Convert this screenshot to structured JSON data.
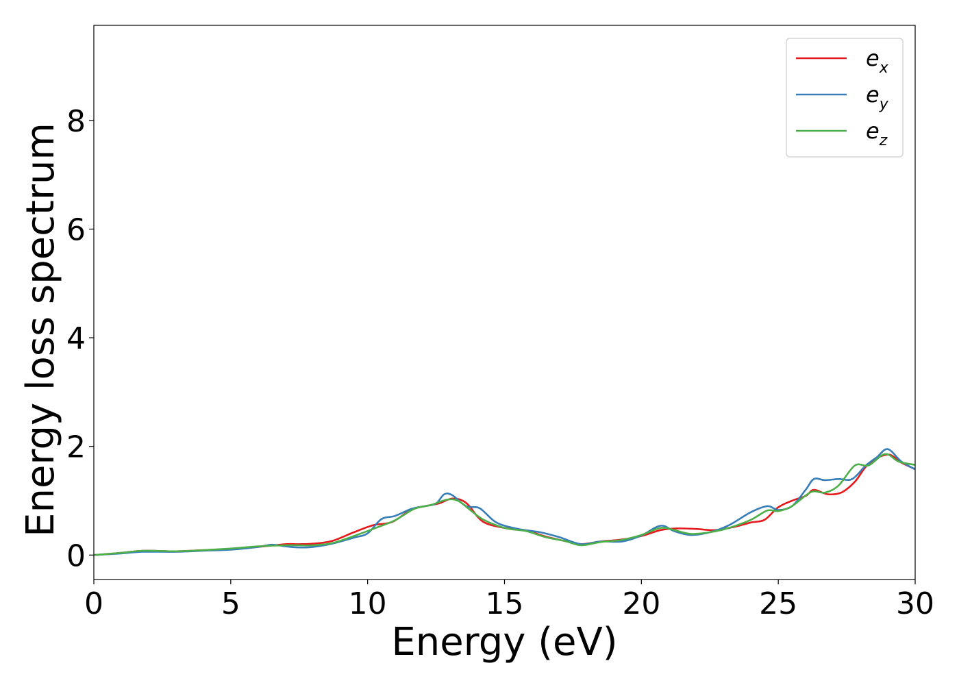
{
  "chart_data": {
    "type": "line",
    "xlabel": "Energy (eV)",
    "ylabel": "Energy loss spectrum",
    "xlim": [
      0,
      30
    ],
    "ylim": [
      -0.45,
      9.75
    ],
    "xticks": [
      0,
      5,
      10,
      15,
      20,
      25,
      30
    ],
    "yticks": [
      0,
      2,
      4,
      6,
      8
    ],
    "xtick_labels": [
      "0",
      "5",
      "10",
      "15",
      "20",
      "25",
      "30"
    ],
    "ytick_labels": [
      "0",
      "2",
      "4",
      "6",
      "8"
    ],
    "grid": false,
    "legend_position": "top-right",
    "series": [
      {
        "name": "e",
        "subscript": "x",
        "color": "#e41a1c",
        "x": [
          0,
          1,
          1.8,
          3,
          4,
          5,
          6,
          7,
          7.5,
          8,
          8.7,
          9.5,
          10.2,
          10.9,
          11.6,
          12.1,
          12.6,
          13.1,
          13.6,
          14.2,
          15,
          15.8,
          16.5,
          17.2,
          17.8,
          18.5,
          19.2,
          20,
          20.7,
          21.3,
          22,
          22.7,
          23.4,
          24,
          24.5,
          25,
          25.5,
          26,
          26.3,
          26.8,
          27.3,
          27.8,
          28.3,
          29,
          29.5,
          30
        ],
        "y": [
          0,
          0.04,
          0.08,
          0.07,
          0.09,
          0.11,
          0.15,
          0.2,
          0.2,
          0.21,
          0.26,
          0.42,
          0.55,
          0.61,
          0.84,
          0.9,
          0.95,
          1.04,
          0.96,
          0.62,
          0.5,
          0.45,
          0.34,
          0.26,
          0.2,
          0.25,
          0.28,
          0.35,
          0.46,
          0.49,
          0.48,
          0.46,
          0.52,
          0.6,
          0.65,
          0.88,
          1.0,
          1.09,
          1.2,
          1.12,
          1.15,
          1.35,
          1.68,
          1.85,
          1.7,
          1.58
        ]
      },
      {
        "name": "e",
        "subscript": "y",
        "color": "#377eb8",
        "x": [
          0,
          1,
          1.8,
          3,
          4,
          5,
          6,
          6.5,
          7,
          7.5,
          8,
          8.7,
          9.5,
          10,
          10.5,
          11,
          11.6,
          12.1,
          12.5,
          12.8,
          13.1,
          13.6,
          14.1,
          14.7,
          15.5,
          16.3,
          17,
          17.8,
          18.5,
          19.3,
          20,
          20.7,
          21.2,
          21.8,
          22.5,
          23.2,
          24,
          24.6,
          25,
          25.5,
          26,
          26.3,
          26.7,
          27.2,
          27.7,
          28.2,
          28.6,
          29,
          29.5,
          30
        ],
        "y": [
          0,
          0.03,
          0.06,
          0.06,
          0.08,
          0.1,
          0.15,
          0.19,
          0.16,
          0.14,
          0.15,
          0.21,
          0.32,
          0.4,
          0.66,
          0.72,
          0.85,
          0.9,
          0.95,
          1.12,
          1.1,
          0.9,
          0.86,
          0.6,
          0.48,
          0.42,
          0.33,
          0.2,
          0.25,
          0.25,
          0.36,
          0.54,
          0.44,
          0.37,
          0.42,
          0.55,
          0.79,
          0.9,
          0.83,
          0.9,
          1.2,
          1.4,
          1.38,
          1.4,
          1.4,
          1.65,
          1.8,
          1.95,
          1.72,
          1.58
        ]
      },
      {
        "name": "e",
        "subscript": "z",
        "color": "#4daf4a",
        "x": [
          0,
          1,
          1.8,
          3,
          4,
          5,
          6,
          7,
          7.5,
          8,
          8.7,
          9.5,
          10.3,
          11,
          11.7,
          12.3,
          12.9,
          13.3,
          13.7,
          14.2,
          15,
          15.8,
          16.5,
          17.2,
          17.8,
          18.5,
          19.3,
          20,
          20.7,
          21.2,
          21.8,
          22.5,
          23.2,
          24,
          24.6,
          25,
          25.5,
          26.2,
          26.7,
          27.2,
          27.8,
          28.3,
          28.9,
          29.4,
          30
        ],
        "y": [
          0,
          0.04,
          0.08,
          0.07,
          0.09,
          0.12,
          0.16,
          0.18,
          0.18,
          0.18,
          0.22,
          0.35,
          0.5,
          0.64,
          0.85,
          0.92,
          1.02,
          1.0,
          0.85,
          0.66,
          0.5,
          0.44,
          0.33,
          0.26,
          0.18,
          0.24,
          0.28,
          0.37,
          0.5,
          0.46,
          0.39,
          0.42,
          0.5,
          0.65,
          0.82,
          0.81,
          0.9,
          1.16,
          1.15,
          1.28,
          1.65,
          1.65,
          1.86,
          1.72,
          1.66
        ]
      }
    ]
  }
}
